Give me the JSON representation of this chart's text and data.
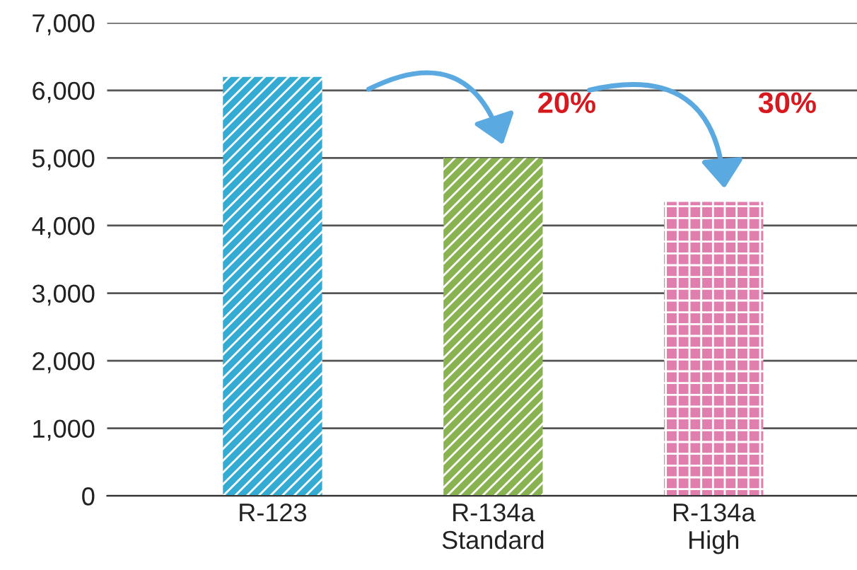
{
  "chart_data": {
    "type": "bar",
    "categories": [
      "R-123",
      "R-134a\nStandard",
      "R-134a\nHigh"
    ],
    "values": [
      6200,
      5000,
      4350
    ],
    "colors": [
      "#19b9ec",
      "#8cc43f",
      "#f06fac"
    ],
    "ylim": [
      0,
      7000
    ],
    "yticks": [
      {
        "value": 0,
        "label": "0"
      },
      {
        "value": 1000,
        "label": "1,000"
      },
      {
        "value": 2000,
        "label": "2,000"
      },
      {
        "value": 3000,
        "label": "3,000"
      },
      {
        "value": 4000,
        "label": "4,000"
      },
      {
        "value": 5000,
        "label": "5,000"
      },
      {
        "value": 6000,
        "label": "6,000"
      },
      {
        "value": 7000,
        "label": "7,000"
      }
    ],
    "grid": "y",
    "annotations": [
      "20%",
      "30%"
    ]
  }
}
